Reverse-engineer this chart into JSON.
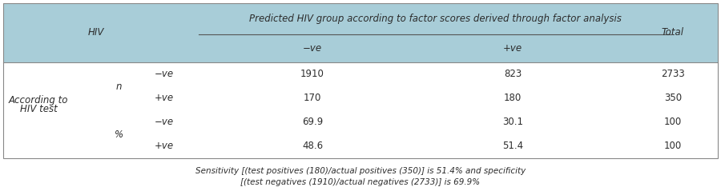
{
  "header_bg": "#a8cdd8",
  "header_text_color": "#2c2c2c",
  "body_bg": "#ffffff",
  "body_text_color": "#2c2c2c",
  "col_header_main": "Predicted HIV group according to factor scores derived through factor analysis",
  "col_sub1": "−ve",
  "col_sub2": "+ve",
  "col_total": "Total",
  "row_label_main1": "According to",
  "row_label_main2": "HIV test",
  "row_label_n": "n",
  "row_label_pct": "%",
  "row1_sign": "−ve",
  "row2_sign": "+ve",
  "row3_sign": "−ve",
  "row4_sign": "+ve",
  "data": [
    [
      "1910",
      "823",
      "2733"
    ],
    [
      "170",
      "180",
      "350"
    ],
    [
      "69.9",
      "30.1",
      "100"
    ],
    [
      "48.6",
      "51.4",
      "100"
    ]
  ],
  "footnote_line1": "Sensitivity [(test positives (180)/actual positives (350)] is 51.4% and specificity",
  "footnote_line2": "[(test negatives (1910)/actual negatives (2733)] is 69.9%",
  "hiv_label": "HIV",
  "figsize": [
    9.0,
    2.44
  ],
  "dpi": 100
}
